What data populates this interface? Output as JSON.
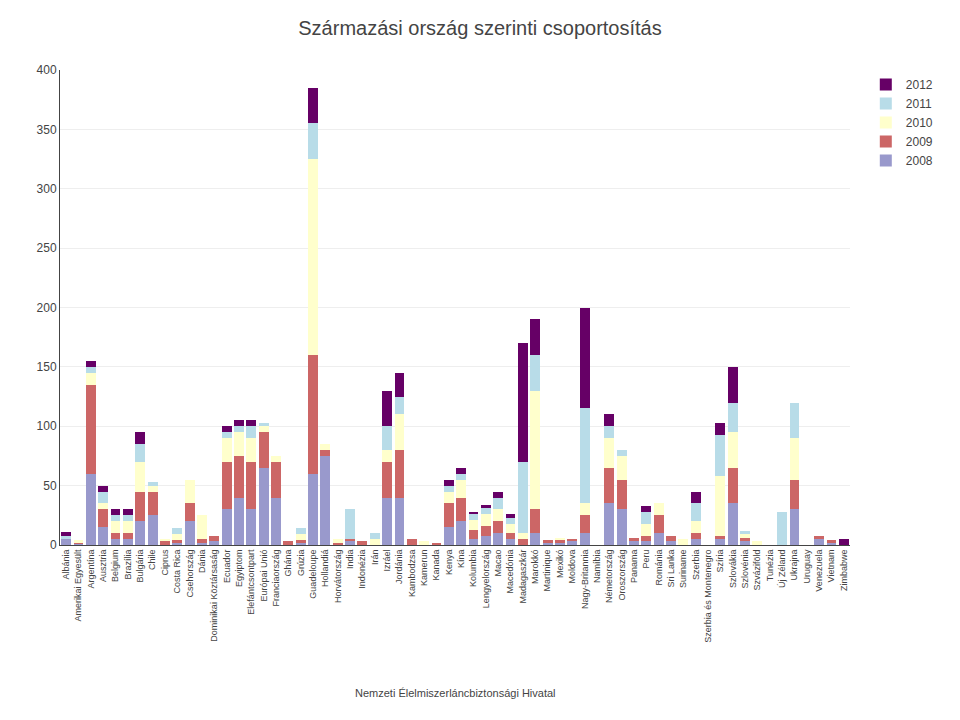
{
  "chart_data": {
    "type": "bar",
    "title": "Származási ország szerinti csoportosítás",
    "stacked": true,
    "categories": [
      "Albánia",
      "Amerikai Egyesült",
      "Argentína",
      "Ausztria",
      "Belgium",
      "Brazília",
      "Bulgária",
      "Chile",
      "Ciprus",
      "Costa Rica",
      "Csehország",
      "Dánia",
      "Dominikai Köztársaság",
      "Ecuador",
      "Egyiptom",
      "Elefántcsontpart",
      "Európai Unió",
      "Franciaország",
      "Ghána",
      "Grúzia",
      "Guadeloupe",
      "Hollandiá",
      "Horvátország",
      "India",
      "Indonézia",
      "Irán",
      "Izráel",
      "Jordánia",
      "Kambodzsa",
      "Kamerun",
      "Kanada",
      "Kenya",
      "Kína",
      "Kolumbia",
      "Lengyelország",
      "Macao",
      "Macedónia",
      "Madagaszkár",
      "Marokkó",
      "Martinique",
      "Mexikó",
      "Moldova",
      "Nagy-Britannia",
      "Namíbia",
      "Németország",
      "Oroszország",
      "Panama",
      "Peru",
      "Románia",
      "Sri Lanka",
      "Suriname",
      "Szerbia",
      "Szerbia és Montenegro",
      "Szíria",
      "Szlovákia",
      "Szlovénia",
      "Szváziföld",
      "Tunézia",
      "Új Zéland",
      "Ukrajna",
      "Uruguay",
      "Venezuela",
      "Vietnam",
      "Zimbabwe"
    ],
    "series": [
      {
        "name": "2008",
        "color": "#9999cc",
        "values": [
          5,
          1,
          60,
          15,
          5,
          5,
          20,
          25,
          0,
          2,
          20,
          2,
          3,
          30,
          40,
          30,
          65,
          40,
          0,
          2,
          60,
          75,
          0,
          3,
          0,
          0,
          40,
          40,
          0,
          0,
          0,
          15,
          20,
          5,
          8,
          10,
          5,
          0,
          10,
          2,
          2,
          3,
          10,
          0,
          35,
          30,
          3,
          3,
          10,
          3,
          0,
          5,
          0,
          5,
          35,
          3,
          0,
          0,
          0,
          30,
          0,
          5,
          2,
          0
        ]
      },
      {
        "name": "2009",
        "color": "#cc6666",
        "values": [
          0,
          1,
          75,
          15,
          5,
          5,
          25,
          20,
          3,
          2,
          15,
          3,
          5,
          40,
          35,
          40,
          30,
          30,
          3,
          2,
          100,
          5,
          2,
          2,
          3,
          0,
          30,
          40,
          5,
          0,
          2,
          20,
          20,
          8,
          8,
          10,
          5,
          5,
          20,
          2,
          2,
          2,
          15,
          0,
          30,
          25,
          3,
          5,
          15,
          5,
          0,
          5,
          0,
          3,
          30,
          3,
          0,
          0,
          0,
          25,
          0,
          3,
          2,
          0
        ]
      },
      {
        "name": "2010",
        "color": "#ffffcc",
        "values": [
          0,
          2,
          10,
          5,
          10,
          10,
          25,
          5,
          2,
          5,
          20,
          20,
          0,
          20,
          20,
          20,
          5,
          5,
          0,
          5,
          165,
          5,
          3,
          0,
          0,
          5,
          10,
          30,
          0,
          3,
          0,
          10,
          15,
          8,
          10,
          10,
          8,
          5,
          100,
          0,
          2,
          0,
          10,
          0,
          25,
          20,
          0,
          10,
          10,
          0,
          5,
          10,
          0,
          50,
          30,
          3,
          3,
          0,
          0,
          35,
          0,
          0,
          0,
          0
        ]
      },
      {
        "name": "2011",
        "color": "#b8dce8",
        "values": [
          3,
          0,
          5,
          10,
          5,
          5,
          15,
          3,
          0,
          5,
          0,
          0,
          0,
          5,
          5,
          10,
          3,
          0,
          0,
          5,
          30,
          0,
          0,
          25,
          0,
          5,
          20,
          15,
          0,
          0,
          0,
          5,
          5,
          5,
          5,
          10,
          5,
          60,
          30,
          0,
          0,
          0,
          80,
          0,
          10,
          5,
          0,
          10,
          0,
          0,
          0,
          15,
          0,
          35,
          25,
          3,
          0,
          0,
          28,
          30,
          0,
          0,
          0,
          0
        ]
      },
      {
        "name": "2012",
        "color": "#660066",
        "values": [
          3,
          0,
          5,
          5,
          5,
          5,
          10,
          0,
          0,
          0,
          0,
          0,
          0,
          5,
          5,
          5,
          0,
          0,
          0,
          0,
          30,
          0,
          0,
          0,
          0,
          0,
          30,
          20,
          0,
          0,
          0,
          5,
          5,
          2,
          3,
          5,
          3,
          100,
          30,
          0,
          0,
          0,
          85,
          0,
          10,
          0,
          0,
          5,
          0,
          0,
          0,
          10,
          0,
          10,
          30,
          0,
          0,
          0,
          0,
          0,
          0,
          0,
          0,
          5
        ]
      }
    ],
    "ylim": [
      0,
      400
    ],
    "yticks": [
      0,
      50,
      100,
      150,
      200,
      250,
      300,
      350,
      400
    ],
    "grid": true,
    "legend": "upper right",
    "annotations": [
      "Nemzeti Élelmiszerláncbiztonsági Hivatal"
    ]
  }
}
